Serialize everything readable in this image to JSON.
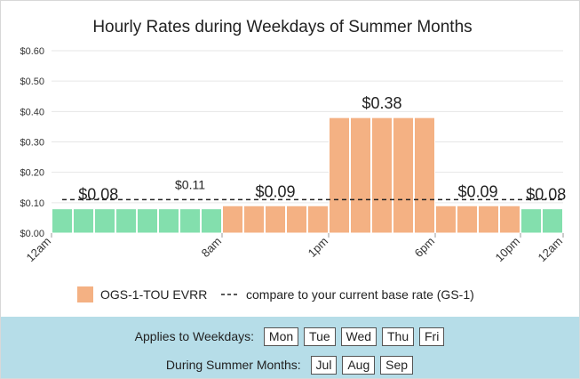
{
  "chart_data": {
    "type": "bar",
    "title": "Hourly Rates during Weekdays of Summer Months",
    "yticks": [
      "$0.00",
      "$0.10",
      "$0.20",
      "$0.30",
      "$0.40",
      "$0.50",
      "$0.60"
    ],
    "ylim": [
      0,
      0.6
    ],
    "grid": true,
    "categories": [
      "12am",
      "1am",
      "2am",
      "3am",
      "4am",
      "5am",
      "6am",
      "7am",
      "8am",
      "9am",
      "10am",
      "11am",
      "12pm",
      "1pm",
      "2pm",
      "3pm",
      "4pm",
      "5pm",
      "6pm",
      "7pm",
      "8pm",
      "9pm",
      "10pm",
      "11pm"
    ],
    "xtick_labels": [
      {
        "hour": 0,
        "label": "12am"
      },
      {
        "hour": 8,
        "label": "8am"
      },
      {
        "hour": 13,
        "label": "1pm"
      },
      {
        "hour": 18,
        "label": "6pm"
      },
      {
        "hour": 22,
        "label": "10pm"
      },
      {
        "hour": 24,
        "label": "12am"
      }
    ],
    "series": [
      {
        "name": "OGS-1-TOU EVRR",
        "values": [
          0.08,
          0.08,
          0.08,
          0.08,
          0.08,
          0.08,
          0.08,
          0.08,
          0.09,
          0.09,
          0.09,
          0.09,
          0.09,
          0.38,
          0.38,
          0.38,
          0.38,
          0.38,
          0.09,
          0.09,
          0.09,
          0.09,
          0.08,
          0.08
        ],
        "colors": {
          "off_peak": "#83dfad",
          "on_peak": "#f4b183"
        },
        "off_peak_hours": [
          0,
          1,
          2,
          3,
          4,
          5,
          6,
          7,
          22,
          23
        ]
      }
    ],
    "baseline": {
      "name": "compare to your current base rate (GS-1)",
      "value": 0.11,
      "style": "dashed"
    },
    "annotations": [
      {
        "text": "$0.08",
        "hour": 2.2,
        "value": 0.08,
        "size": "large"
      },
      {
        "text": "$0.11",
        "hour": 6.5,
        "value": 0.11,
        "size": "small"
      },
      {
        "text": "$0.09",
        "hour": 10.5,
        "value": 0.09,
        "size": "large"
      },
      {
        "text": "$0.38",
        "hour": 15.5,
        "value": 0.38,
        "size": "large"
      },
      {
        "text": "$0.09",
        "hour": 20.0,
        "value": 0.09,
        "size": "large"
      },
      {
        "text": "$0.08",
        "hour": 23.2,
        "value": 0.08,
        "size": "large"
      }
    ],
    "legend_position": "bottom"
  },
  "footer": {
    "weekdays_label": "Applies to Weekdays:",
    "weekdays": [
      "Mon",
      "Tue",
      "Wed",
      "Thu",
      "Fri"
    ],
    "months_label": "During Summer Months:",
    "months": [
      "Jul",
      "Aug",
      "Sep"
    ]
  }
}
